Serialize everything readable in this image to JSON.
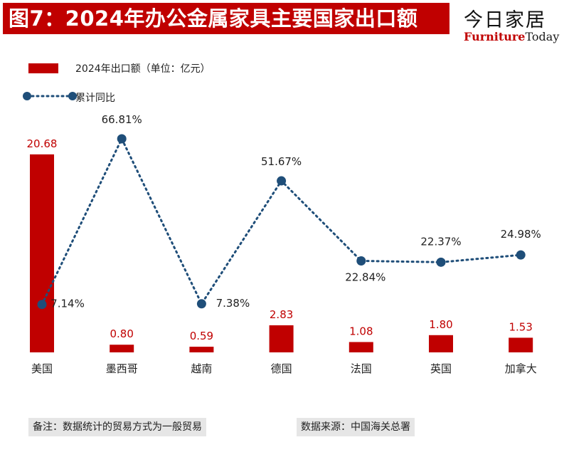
{
  "header": {
    "title": "图7：2024年办公金属家具主要国家出口额",
    "brand_cn": "今日家居",
    "brand_en_a": "Furniture",
    "brand_en_b": "Today"
  },
  "legend": {
    "bar_label": "2024年出口额（单位：亿元）",
    "line_label": "累计同比"
  },
  "colors": {
    "bar": "#c00000",
    "line": "#1f4e79",
    "title_bg": "#c00000"
  },
  "chart_data": {
    "type": "bar",
    "title": "2024年办公金属家具主要国家出口额",
    "categories": [
      "美国",
      "墨西哥",
      "越南",
      "德国",
      "法国",
      "英国",
      "加拿大"
    ],
    "series": [
      {
        "name": "2024年出口额（单位：亿元）",
        "type": "bar",
        "values": [
          20.68,
          0.8,
          0.59,
          2.83,
          1.08,
          1.8,
          1.53
        ],
        "labels": [
          "20.68",
          "0.80",
          "0.59",
          "2.83",
          "1.08",
          "1.80",
          "1.53"
        ]
      },
      {
        "name": "累计同比",
        "type": "line",
        "values": [
          7.14,
          66.81,
          7.38,
          51.67,
          22.84,
          22.37,
          24.98
        ],
        "labels": [
          "7.14%",
          "66.81%",
          "7.38%",
          "51.67%",
          "22.84%",
          "22.37%",
          "24.98%"
        ]
      }
    ]
  },
  "footer": {
    "note": "备注：数据统计的贸易方式为一般贸易",
    "source": "数据来源：中国海关总署"
  }
}
